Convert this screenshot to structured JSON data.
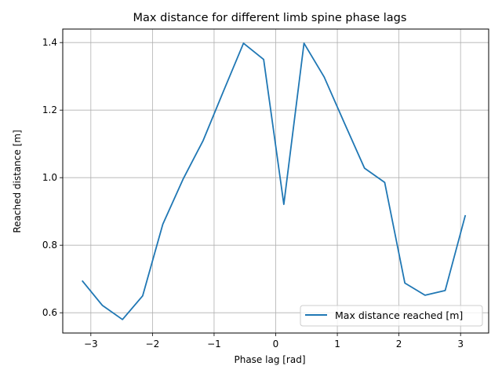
{
  "chart_data": {
    "type": "line",
    "title": "Max distance for different limb spine phase lags",
    "xlabel": "Phase lag [rad]",
    "ylabel": "Reached distance [m]",
    "xlim": [
      -3.456,
      3.456
    ],
    "ylim": [
      0.54,
      1.44
    ],
    "xticks": [
      -3,
      -2,
      -1,
      0,
      1,
      2,
      3
    ],
    "xtick_labels": [
      "−3",
      "−2",
      "−1",
      "0",
      "1",
      "2",
      "3"
    ],
    "yticks": [
      0.6,
      0.8,
      1.0,
      1.2,
      1.4
    ],
    "ytick_labels": [
      "0.6",
      "0.8",
      "1.0",
      "1.2",
      "1.4"
    ],
    "grid": true,
    "legend_position": "lower-right",
    "series": [
      {
        "name": "Max distance reached [m]",
        "color": "#1f77b4",
        "x": [
          -3.1416,
          -2.8142,
          -2.4869,
          -2.1595,
          -1.8322,
          -1.5049,
          -1.1775,
          -0.8502,
          -0.5228,
          -0.1955,
          0.1318,
          0.4592,
          0.7865,
          1.1138,
          1.4412,
          1.7685,
          2.0958,
          2.4232,
          2.7505,
          3.0779
        ],
        "y": [
          0.695,
          0.622,
          0.58,
          0.65,
          0.862,
          0.995,
          1.11,
          1.255,
          1.398,
          1.35,
          0.921,
          1.398,
          1.298,
          1.162,
          1.028,
          0.986,
          0.688,
          0.652,
          0.666,
          0.889
        ]
      }
    ]
  }
}
